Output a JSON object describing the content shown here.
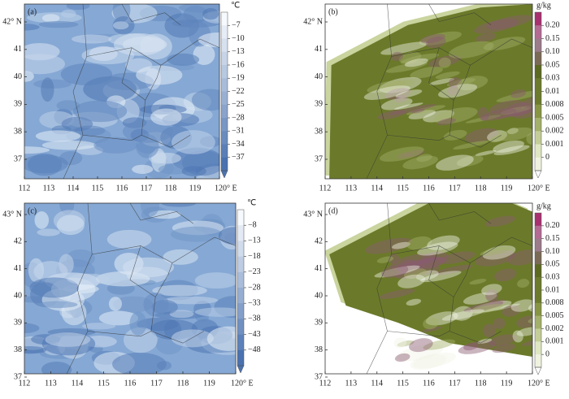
{
  "panels": [
    {
      "label": "(a)",
      "unit": "℃",
      "colorbar_labels": [
        "−7",
        "−10",
        "−13",
        "−16",
        "−19",
        "−22",
        "−25",
        "−28",
        "−31",
        "−34",
        "−37"
      ],
      "x_ticks": [
        "112",
        "113",
        "114",
        "115",
        "116",
        "117",
        "118",
        "119",
        "120° E"
      ],
      "y_ticks": [
        "42° N",
        "41",
        "40",
        "39",
        "38",
        "37"
      ]
    },
    {
      "label": "(b)",
      "unit": "g/kg",
      "colorbar_labels": [
        "0.20",
        "0.15",
        "0.10",
        "0.05",
        "0.03",
        "0.01",
        "0.008",
        "0.005",
        "0.002",
        "0.001",
        "0"
      ],
      "x_ticks": [
        "112",
        "113",
        "114",
        "115",
        "116",
        "117",
        "118",
        "119",
        "120° E"
      ],
      "y_ticks": [
        "42° N",
        "41",
        "40",
        "39",
        "38",
        "37"
      ]
    },
    {
      "label": "(c)",
      "unit": "℃",
      "colorbar_labels": [
        "−8",
        "−13",
        "−18",
        "−23",
        "−28",
        "−33",
        "−38",
        "−43",
        "−48"
      ],
      "x_ticks": [
        "112",
        "113",
        "114",
        "115",
        "116",
        "117",
        "118",
        "119",
        "120° E"
      ],
      "y_ticks": [
        "43° N",
        "42",
        "41",
        "40",
        "39",
        "38",
        "37"
      ]
    },
    {
      "label": "(d)",
      "unit": "g/kg",
      "colorbar_labels": [
        "0.20",
        "0.15",
        "0.10",
        "0.05",
        "0.03",
        "0.01",
        "0.008",
        "0.005",
        "0.002",
        "0.001",
        "0"
      ],
      "x_ticks": [
        "112",
        "113",
        "114",
        "115",
        "116",
        "117",
        "118",
        "119",
        "120° E"
      ],
      "y_ticks": [
        "43° N",
        "42",
        "41",
        "40",
        "39",
        "38",
        "37"
      ]
    }
  ]
}
